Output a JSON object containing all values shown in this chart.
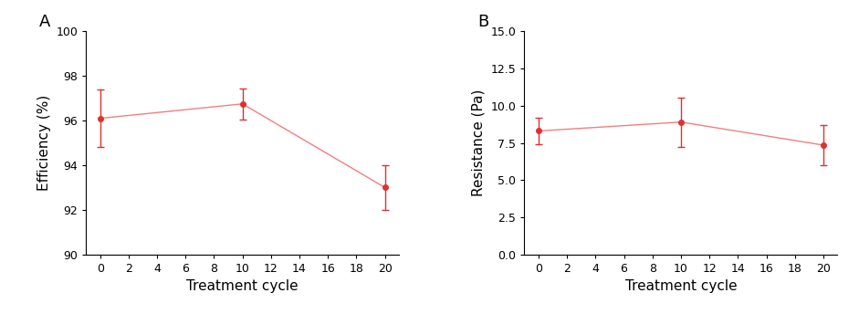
{
  "panel_A": {
    "x": [
      0,
      10,
      20
    ],
    "y": [
      96.1,
      96.75,
      93.0
    ],
    "yerr": [
      1.3,
      0.7,
      1.0
    ],
    "ylabel": "Efficiency (%)",
    "xlabel": "Treatment cycle",
    "ylim": [
      90,
      100
    ],
    "yticks": [
      90,
      92,
      94,
      96,
      98,
      100
    ],
    "xticks": [
      0,
      2,
      4,
      6,
      8,
      10,
      12,
      14,
      16,
      18,
      20
    ],
    "label": "A"
  },
  "panel_B": {
    "x": [
      0,
      10,
      20
    ],
    "y": [
      8.3,
      8.9,
      7.35
    ],
    "yerr": [
      0.9,
      1.65,
      1.35
    ],
    "ylabel": "Resistance (Pa)",
    "xlabel": "Treatment cycle",
    "ylim": [
      0.0,
      15.0
    ],
    "yticks": [
      0.0,
      2.5,
      5.0,
      7.5,
      10.0,
      12.5,
      15.0
    ],
    "xticks": [
      0,
      2,
      4,
      6,
      8,
      10,
      12,
      14,
      16,
      18,
      20
    ],
    "label": "B"
  },
  "line_color": "#f08080",
  "marker_color": "#e03030",
  "marker": "o",
  "markersize": 4,
  "linewidth": 1.0,
  "capsize": 3,
  "elinewidth": 1.0,
  "label_fontsize": 13,
  "tick_fontsize": 9,
  "axis_label_fontsize": 11
}
